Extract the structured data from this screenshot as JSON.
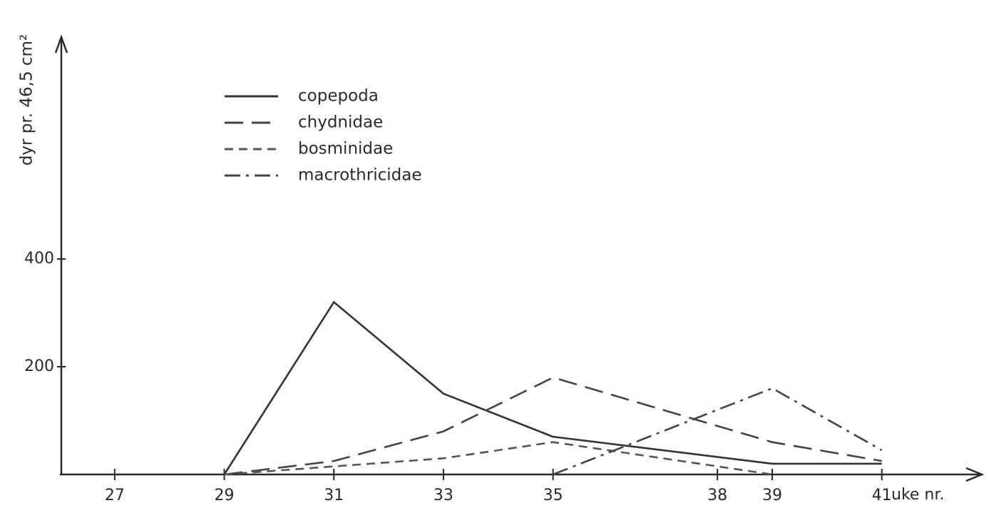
{
  "chart_data": {
    "type": "line",
    "y_label": "dyr pr. 46,5 cm²",
    "x_label": "uke nr.",
    "x": [
      29,
      31,
      33,
      35,
      39,
      41
    ],
    "series": [
      {
        "name": "copepoda",
        "color": "#333333",
        "line_style": "solid",
        "values": [
          0,
          320,
          150,
          70,
          20,
          20
        ]
      },
      {
        "name": "chydnidae",
        "color": "#444444",
        "line_style": "long-dash",
        "values": [
          0,
          25,
          80,
          180,
          60,
          25
        ]
      },
      {
        "name": "bosminidae",
        "color": "#555555",
        "line_style": "short-dash",
        "values": [
          0,
          15,
          30,
          60,
          0,
          null
        ]
      },
      {
        "name": "macrothricidae",
        "color": "#444444",
        "line_style": "dash-dot",
        "values": [
          null,
          null,
          null,
          0,
          160,
          45
        ]
      }
    ],
    "xlim": [
      26,
      42.8
    ],
    "ylim": [
      0,
      800
    ],
    "xticks": [
      27,
      29,
      31,
      33,
      35,
      38,
      39,
      41
    ],
    "yticks": [
      200,
      400
    ],
    "legend": "upper left"
  }
}
